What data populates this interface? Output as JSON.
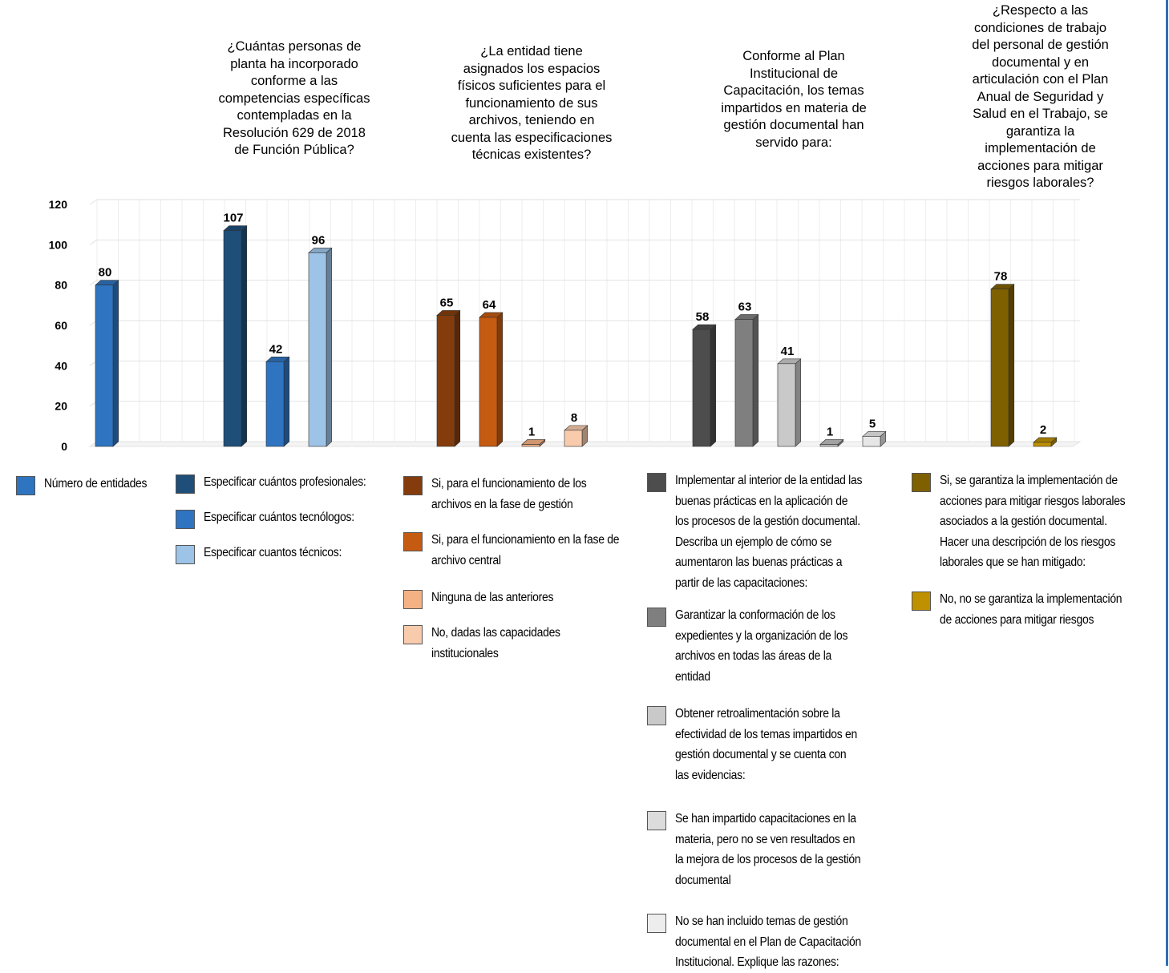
{
  "questions": [
    "¿Cuántas personas de\nplanta ha incorporado\nconforme a las\ncompetencias específicas\ncontempladas en la\nResolución 629 de 2018\nde Función Pública?",
    "¿La entidad tiene\nasignados los espacios\nfísicos suficientes para el\nfuncionamiento de sus\narchivos, teniendo en\ncuenta las especificaciones\ntécnicas existentes?",
    "Conforme al Plan\nInstitucional de\nCapacitación, los temas\nimpartidos en materia de\ngestión documental han\nservido para:",
    "¿Respecto a las\ncondiciones de trabajo\ndel personal de gestión\ndocumental y en\narticulación con el Plan\nAnual de Seguridad y\nSalud en el Trabajo, se\ngarantiza la\nimplementación de\nacciones para mitigar\nriesgos laborales?"
  ],
  "legend": {
    "col0": [
      "Número de entidades"
    ],
    "col1": [
      "Especificar cuántos profesionales:",
      "Especificar cuántos tecnólogos:",
      "Especificar cuantos técnicos:"
    ],
    "col2": [
      "Si, para el funcionamiento de los\narchivos en la fase de gestión",
      "Si, para el funcionamiento en la fase de\narchivo central",
      "Ninguna de las anteriores",
      "No, dadas las capacidades\ninstitucionales"
    ],
    "col3": [
      "Implementar al interior de la entidad las\nbuenas prácticas en la aplicación de\nlos procesos de la gestión documental.\nDescriba un ejemplo de cómo se\naumentaron las buenas prácticas a\npartir de las capacitaciones:",
      "Garantizar la conformación de los\nexpedientes y la organización de los\narchivos en todas las áreas de la\nentidad",
      "Obtener retroalimentación sobre la\nefectividad de los temas impartidos en\ngestión documental y  se cuenta con\nlas evidencias:",
      "Se han impartido capacitaciones en la\nmateria, pero no se ven resultados en\nla mejora de los procesos de la gestión\ndocumental",
      "No se han incluido temas de gestión\ndocumental en el Plan de Capacitación\nInstitucional.  Explique las razones:"
    ],
    "col4": [
      "Si, se garantiza la implementación de\nacciones para mitigar riesgos laborales\nasociados a la gestión documental.\nHacer una descripción de los riesgos\nlaborales que se han mitigado:",
      "No, no se garantiza la implementación\nde acciones para mitigar riesgos"
    ]
  },
  "chart_data": {
    "type": "bar",
    "ylim": [
      0,
      120
    ],
    "yticks": [
      0,
      20,
      40,
      60,
      80,
      100,
      120
    ],
    "grid": true,
    "bars": [
      {
        "group": 0,
        "series": "Número de entidades",
        "value": 80,
        "color": "#2e74c0"
      },
      {
        "group": 1,
        "series": "Especificar cuántos profesionales:",
        "value": 107,
        "color": "#1f4e79"
      },
      {
        "group": 1,
        "series": "Especificar cuántos tecnólogos:",
        "value": 42,
        "color": "#2e74c0"
      },
      {
        "group": 1,
        "series": "Especificar cuantos técnicos:",
        "value": 96,
        "color": "#9dc3e6"
      },
      {
        "group": 2,
        "series": "Si, para el funcionamiento de los archivos en la fase de gestión",
        "value": 65,
        "color": "#843c0c"
      },
      {
        "group": 2,
        "series": "Si, para el funcionamiento en la fase de archivo central",
        "value": 64,
        "color": "#c55a11"
      },
      {
        "group": 2,
        "series": "Ninguna de las anteriores",
        "value": 1,
        "color": "#f4b183"
      },
      {
        "group": 2,
        "series": "No, dadas las capacidades institucionales",
        "value": 8,
        "color": "#f8cbad"
      },
      {
        "group": 3,
        "series": "Implementar al interior de la entidad las buenas prácticas",
        "value": 58,
        "color": "#4d4d4d"
      },
      {
        "group": 3,
        "series": "Garantizar la conformación de los expedientes",
        "value": 63,
        "color": "#7f7f7f"
      },
      {
        "group": 3,
        "series": "Obtener retroalimentación",
        "value": 41,
        "color": "#c9c9c9"
      },
      {
        "group": 3,
        "series": "Se han impartido capacitaciones",
        "value": 1,
        "color": "#bfbfbf"
      },
      {
        "group": 3,
        "series": "No se han incluido temas",
        "value": 5,
        "color": "#e6e6e6"
      },
      {
        "group": 4,
        "series": "Si, se garantiza la implementación",
        "value": 78,
        "color": "#7f6000"
      },
      {
        "group": 4,
        "series": "No, no se garantiza la implementación",
        "value": 2,
        "color": "#bf9000"
      }
    ]
  },
  "legend_colors": {
    "col0": [
      "#2e74c0"
    ],
    "col1": [
      "#1f4e79",
      "#2e74c0",
      "#9dc3e6"
    ],
    "col2": [
      "#843c0c",
      "#c55a11",
      "#f4b183",
      "#f8cbad"
    ],
    "col3": [
      "#4d4d4d",
      "#7f7f7f",
      "#c9c9c9",
      "#dcdcdc",
      "#ededed"
    ],
    "col4": [
      "#7f6000",
      "#bf9000"
    ]
  }
}
